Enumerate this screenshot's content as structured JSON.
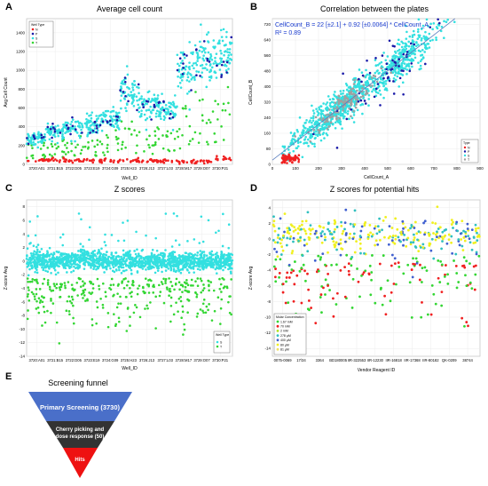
{
  "panels": {
    "A": {
      "letter": "A"
    },
    "B": {
      "letter": "B"
    },
    "C": {
      "letter": "C"
    },
    "D": {
      "letter": "D"
    },
    "E": {
      "letter": "E"
    }
  },
  "chart_data": [
    {
      "id": "A",
      "type": "scatter",
      "title": "Average cell count",
      "xlabel": "Well_ID",
      "ylabel": "Avg Cell Count",
      "ylim": [
        0,
        1550
      ],
      "yticks": [
        0,
        200,
        400,
        600,
        800,
        1000,
        1200,
        1400
      ],
      "xtick_labels": [
        "3720:A01",
        "3721:B15",
        "3722:D05",
        "3723:E19",
        "3724:G09",
        "3725:H23",
        "3726:J13",
        "3727:L03",
        "3728:M17",
        "3729:O07",
        "3730:P21"
      ],
      "legend_title": "Well Type",
      "legend_position": "top-left",
      "legend": [
        {
          "name": "N",
          "color": "#f02020"
        },
        {
          "name": "P",
          "color": "#1a1aa8"
        },
        {
          "name": "S",
          "color": "#33e0e0"
        },
        {
          "name": "T",
          "color": "#33d633"
        }
      ],
      "series_description": [
        {
          "name": "N",
          "color": "#f02020",
          "level_by_segment": [
            50,
            50,
            45,
            45,
            40,
            40,
            35,
            30,
            30,
            25,
            60
          ]
        },
        {
          "name": "P",
          "color": "#1a1aa8",
          "level_by_segment": [
            280,
            350,
            400,
            420,
            500,
            780,
            640,
            600,
            1000,
            1100,
            1150
          ]
        },
        {
          "name": "S",
          "color": "#33e0e0",
          "level_by_segment": [
            270,
            360,
            390,
            420,
            480,
            760,
            620,
            580,
            1000,
            1120,
            1150
          ]
        },
        {
          "name": "T",
          "color": "#33d633",
          "level_by_segment": [
            150,
            170,
            190,
            200,
            230,
            300,
            260,
            240,
            420,
            500,
            520
          ]
        }
      ],
      "grid": true
    },
    {
      "id": "B",
      "type": "scatter",
      "title": "Correlation between the plates",
      "xlabel": "CellCount_A",
      "ylabel": "CellCount_B",
      "xlim": [
        0,
        900
      ],
      "ylim": [
        0,
        750
      ],
      "xticks": [
        0,
        100,
        200,
        300,
        400,
        500,
        600,
        700,
        800,
        900
      ],
      "yticks": [
        0,
        80,
        160,
        240,
        320,
        400,
        480,
        560,
        640,
        720
      ],
      "annotation": [
        "CellCount_B = 22 [±2.1] + 0.92 [±0.0064] * CellCount_A",
        "R² = 0.89"
      ],
      "fit_line": {
        "intercept": 22,
        "slope": 0.92,
        "color": "#5b7fbf"
      },
      "legend_title": "Type",
      "legend_position": "bottom-right",
      "legend": [
        {
          "name": "N",
          "color": "#f02020"
        },
        {
          "name": "P",
          "color": "#1a1aa8"
        },
        {
          "name": "S",
          "color": "#33e0e0"
        },
        {
          "name": "T",
          "color": "#a0a0a0"
        }
      ],
      "grid": true
    },
    {
      "id": "C",
      "type": "scatter",
      "title": "Z scores",
      "xlabel": "Well_ID",
      "ylabel": "Z-score Avg",
      "ylim": [
        -14,
        9
      ],
      "yticks": [
        -14,
        -12,
        -10,
        -8,
        -6,
        -4,
        -2,
        0,
        2,
        4,
        6,
        8
      ],
      "xtick_labels": [
        "3720:A01",
        "3721:B15",
        "3722:D05",
        "3723:E19",
        "3724:G09",
        "3725:H23",
        "3726:J13",
        "3727:L03",
        "3728:M17",
        "3729:O07",
        "3730:P21"
      ],
      "legend_title": "Well Type",
      "legend_position": "bottom-right",
      "legend": [
        {
          "name": "S",
          "color": "#33e0e0"
        },
        {
          "name": "T",
          "color": "#33d633"
        }
      ],
      "grid": true
    },
    {
      "id": "D",
      "type": "scatter",
      "title": "Z scores for potential hits",
      "xlabel": "Vendor Reagent ID",
      "ylabel": "Z-score Avg",
      "ylim": [
        -15,
        5
      ],
      "yticks": [
        -14,
        -12,
        -10,
        -8,
        -6,
        -4,
        -2,
        0,
        2,
        4
      ],
      "xtick_labels": [
        "0075-0069",
        "17/34",
        "3364",
        "BD180005",
        "IIR-322553",
        "IIR-12230",
        "IIR-16818",
        "IIR-17368",
        "IIR-80182",
        "QK-0209",
        "38744"
      ],
      "legend_title": "Molar Concentration",
      "legend_position": "bottom-left",
      "legend": [
        {
          "name": "1.67 mM",
          "color": "#33d633"
        },
        {
          "name": "70 mM",
          "color": "#f02020"
        },
        {
          "name": "2 mM",
          "color": "#b0e020"
        },
        {
          "name": "278 µM",
          "color": "#30c0c0"
        },
        {
          "name": "400 µM",
          "color": "#4060d0"
        },
        {
          "name": "80 µM",
          "color": "#f0f020"
        },
        {
          "name": "81 µM",
          "color": "#f0e060"
        }
      ],
      "grid": true
    },
    {
      "id": "E",
      "type": "funnel",
      "title": "Screening funnel",
      "stages": [
        {
          "label": "Primary Screening (3730)",
          "value": 3730,
          "color": "#4a6fc9"
        },
        {
          "label": "Cherry picking and dose response (50)",
          "value": 50,
          "color": "#333333"
        },
        {
          "label": "Hits",
          "value": null,
          "color": "#ee1111"
        }
      ]
    }
  ]
}
